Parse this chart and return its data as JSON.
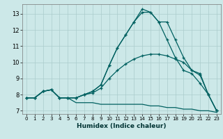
{
  "xlabel": "Humidex (Indice chaleur)",
  "bg_color": "#cce8e8",
  "grid_color": "#aacccc",
  "line_color": "#006060",
  "xlim": [
    -0.5,
    23.5
  ],
  "ylim": [
    6.8,
    13.6
  ],
  "yticks": [
    7,
    8,
    9,
    10,
    11,
    12,
    13
  ],
  "xticks": [
    0,
    1,
    2,
    3,
    4,
    5,
    6,
    7,
    8,
    9,
    10,
    11,
    12,
    13,
    14,
    15,
    16,
    17,
    18,
    19,
    20,
    21,
    22,
    23
  ],
  "series_bottom_x": [
    0,
    1,
    2,
    3,
    4,
    5,
    6,
    7,
    8,
    9,
    10,
    11,
    12,
    13,
    14,
    15,
    16,
    17,
    18,
    19,
    20,
    21,
    22,
    23
  ],
  "series_bottom_y": [
    7.8,
    7.8,
    8.2,
    8.3,
    7.8,
    7.8,
    7.5,
    7.5,
    7.5,
    7.4,
    7.4,
    7.4,
    7.4,
    7.4,
    7.4,
    7.3,
    7.3,
    7.2,
    7.2,
    7.1,
    7.1,
    7.0,
    7.0,
    6.9
  ],
  "series_mid_x": [
    0,
    1,
    2,
    3,
    4,
    5,
    6,
    7,
    8,
    9,
    10,
    11,
    12,
    13,
    14,
    15,
    16,
    17,
    18,
    19,
    20,
    21,
    22,
    23
  ],
  "series_mid_y": [
    7.8,
    7.8,
    8.2,
    8.3,
    7.8,
    7.8,
    7.8,
    8.0,
    8.1,
    8.4,
    9.0,
    9.5,
    9.9,
    10.2,
    10.4,
    10.5,
    10.5,
    10.4,
    10.2,
    10.0,
    9.5,
    9.2,
    8.0,
    7.0
  ],
  "series_high1_x": [
    0,
    1,
    2,
    3,
    4,
    5,
    6,
    7,
    8,
    9,
    10,
    11,
    12,
    13,
    14,
    15,
    16,
    17,
    18,
    19,
    20,
    21,
    22,
    23
  ],
  "series_high1_y": [
    7.8,
    7.8,
    8.2,
    8.3,
    7.8,
    7.8,
    7.8,
    8.0,
    8.2,
    8.6,
    9.8,
    10.9,
    11.7,
    12.5,
    13.1,
    13.1,
    12.5,
    12.5,
    11.4,
    10.3,
    9.5,
    9.3,
    8.0,
    7.0
  ],
  "series_high2_x": [
    0,
    1,
    2,
    3,
    4,
    5,
    6,
    7,
    8,
    9,
    10,
    11,
    12,
    13,
    14,
    15,
    16,
    17,
    18,
    19,
    20,
    21,
    22,
    23
  ],
  "series_high2_y": [
    7.8,
    7.8,
    8.2,
    8.3,
    7.8,
    7.8,
    7.8,
    8.0,
    8.2,
    8.6,
    9.8,
    10.9,
    11.7,
    12.5,
    13.3,
    13.1,
    12.5,
    11.4,
    10.3,
    9.5,
    9.3,
    8.7,
    8.0,
    7.0
  ]
}
